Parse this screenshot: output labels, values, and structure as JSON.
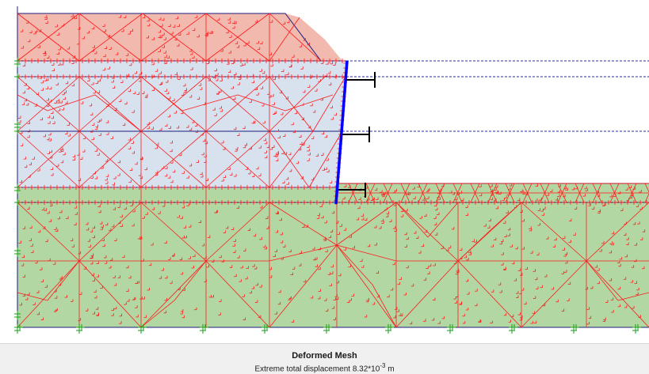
{
  "plot": {
    "caption_title": "Deformed Mesh",
    "caption_text": "Extreme total displacement 8.32*10",
    "caption_exponent": "-3",
    "caption_unit": " m"
  },
  "colors": {
    "top_layer": "#f2b9ae",
    "middle_layer": "#d8e2ef",
    "bottom_layer": "#b3d7a3",
    "mesh": "#ff0000",
    "wall": "#0000ff",
    "boundary": "#1c1c7c",
    "anchor": "#000000",
    "fixity": "#1a9e1a"
  }
}
